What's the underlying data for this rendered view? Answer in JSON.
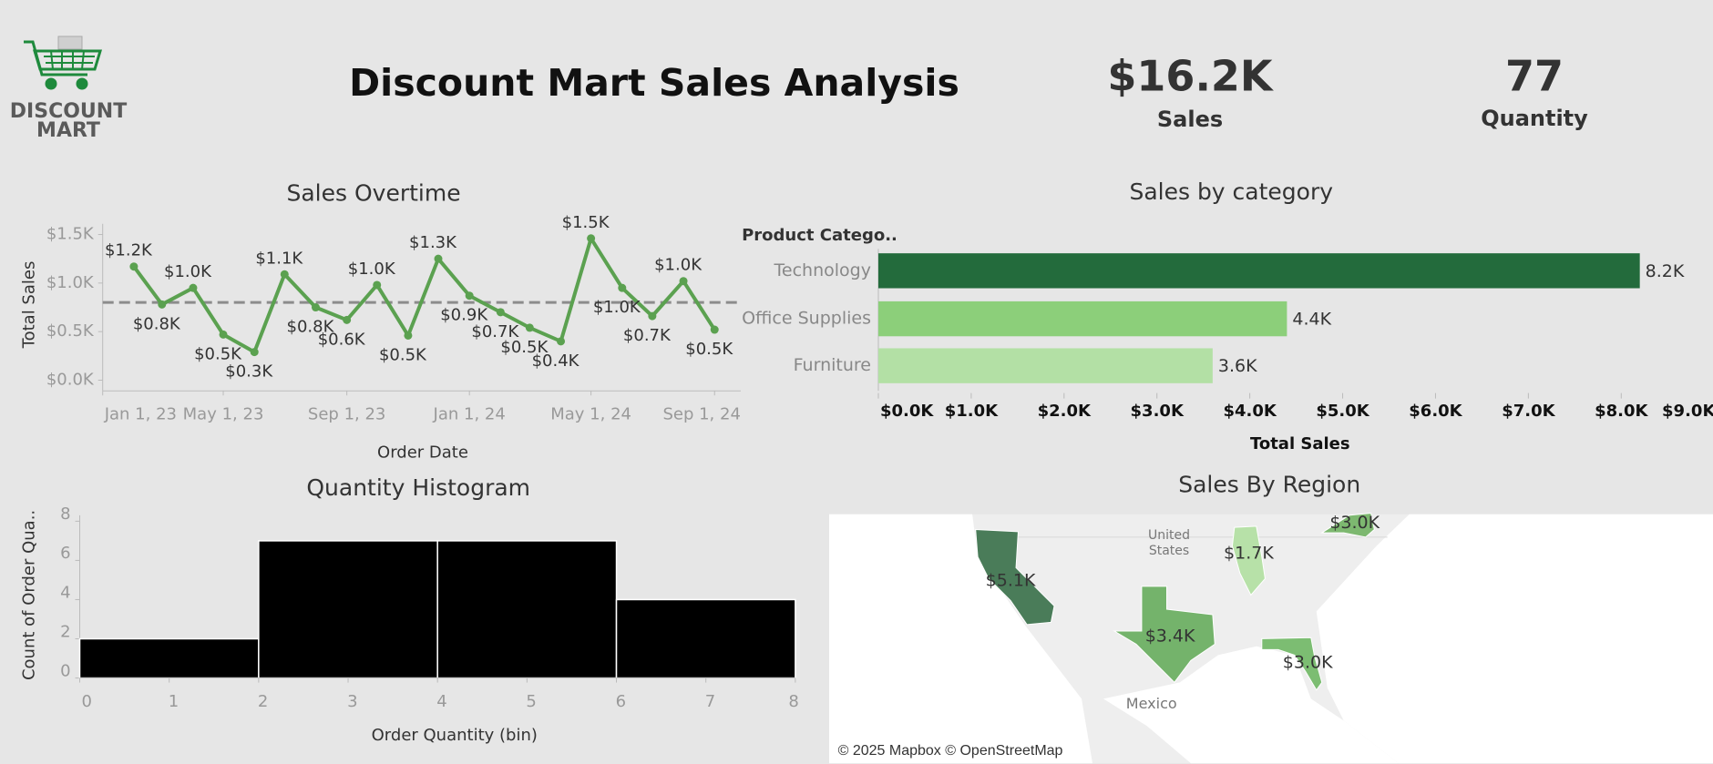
{
  "header": {
    "logo_lines": [
      "DISCOUNT",
      "MART"
    ],
    "title": "Discount Mart Sales Analysis"
  },
  "kpis": [
    {
      "value": "$16.2K",
      "label": "Sales"
    },
    {
      "value": 77,
      "label": "Quantity"
    }
  ],
  "chart_data": [
    {
      "type": "line",
      "title": "Sales Overtime",
      "x_label": "Order Date",
      "y_label": "Total Sales",
      "x": [
        "2023-02-01",
        "2023-03-01",
        "2023-04-01",
        "2023-05-01",
        "2023-06-01",
        "2023-07-01",
        "2023-08-01",
        "2023-09-01",
        "2023-10-01",
        "2023-11-01",
        "2023-12-01",
        "2024-01-01",
        "2024-02-01",
        "2024-03-01",
        "2024-04-01",
        "2024-05-01",
        "2024-06-01",
        "2024-07-01",
        "2024-08-01",
        "2024-09-01"
      ],
      "values": [
        1170,
        780,
        950,
        470,
        290,
        1090,
        750,
        620,
        980,
        460,
        1250,
        870,
        700,
        540,
        400,
        1460,
        950,
        660,
        1020,
        520
      ],
      "value_labels": [
        "$1.2K",
        "$0.8K",
        "$1.0K",
        "$0.5K",
        "$0.3K",
        "$1.1K",
        "$0.8K",
        "$0.6K",
        "$1.0K",
        "$0.5K",
        "$1.3K",
        "$0.9K",
        "$0.7K",
        "$0.5K",
        "$0.4K",
        "$1.5K",
        "$1.0K",
        "$0.7K",
        "$1.0K",
        "$0.5K"
      ],
      "color": "#5ba150",
      "reference_line": 800,
      "reference_color": "#8c8c8c",
      "xlim": [
        "2023-01-01",
        "2024-09-27"
      ],
      "xticks": [
        {
          "value": "2023-01-01",
          "label": "Jan 1, 23"
        },
        {
          "value": "2023-05-01",
          "label": "May 1, 23"
        },
        {
          "value": "2023-09-01",
          "label": "Sep 1, 23"
        },
        {
          "value": "2024-01-01",
          "label": "Jan 1, 24"
        },
        {
          "value": "2024-05-01",
          "label": "May 1, 24"
        },
        {
          "value": "2024-09-01",
          "label": "Sep 1, 24"
        }
      ],
      "ylim": [
        -110,
        1610
      ],
      "yticks": [
        {
          "value": 0,
          "label": "$0.0K"
        },
        {
          "value": 500,
          "label": "$0.5K"
        },
        {
          "value": 1000,
          "label": "$1.0K"
        },
        {
          "value": 1500,
          "label": "$1.5K"
        }
      ]
    },
    {
      "type": "hbar",
      "title": "Sales by category",
      "row_header": "Product Catego..",
      "x_label": "Total Sales",
      "categories": [
        "Technology",
        "Office Supplies",
        "Furniture"
      ],
      "values": [
        8200,
        4400,
        3600
      ],
      "value_labels": [
        "8.2K",
        "4.4K",
        "3.6K"
      ],
      "colors": [
        "#236b3c",
        "#8ccf7a",
        "#b3e0a5"
      ],
      "xlim": [
        0,
        9000
      ],
      "xticks": [
        {
          "value": 0,
          "label": "$0.0K"
        },
        {
          "value": 1000,
          "label": "$1.0K"
        },
        {
          "value": 2000,
          "label": "$2.0K"
        },
        {
          "value": 3000,
          "label": "$3.0K"
        },
        {
          "value": 4000,
          "label": "$4.0K"
        },
        {
          "value": 5000,
          "label": "$5.0K"
        },
        {
          "value": 6000,
          "label": "$6.0K"
        },
        {
          "value": 7000,
          "label": "$7.0K"
        },
        {
          "value": 8000,
          "label": "$8.0K"
        },
        {
          "value": 9000,
          "label": "$9.0K"
        }
      ]
    },
    {
      "type": "histogram",
      "title": "Quantity Histogram",
      "x_label": "Order Quantity (bin)",
      "y_label": "Count of Order Qua..",
      "bins": [
        0,
        2,
        4,
        6,
        8
      ],
      "values": [
        2,
        7,
        7,
        4
      ],
      "color": "#000000",
      "xlim": [
        0,
        8
      ],
      "xticks": [
        0,
        1,
        2,
        3,
        4,
        5,
        6,
        7,
        8
      ],
      "ylim": [
        0,
        8.3
      ],
      "yticks": [
        0,
        2,
        4,
        6,
        8
      ]
    },
    {
      "type": "map",
      "title": "Sales By Region",
      "values": [
        5100,
        3400,
        3000,
        1700,
        3000
      ],
      "value_labels": [
        "$5.1K",
        "$3.4K",
        "$3.0K",
        "$1.7K",
        "$3.0K"
      ],
      "colors": [
        "#4a7c59",
        "#74b36b",
        "#7cbd72",
        "#b7e1a8",
        "#7db870"
      ],
      "place_labels": [
        "United States",
        "Mexico"
      ],
      "attribution": "© 2025 Mapbox © OpenStreetMap"
    }
  ]
}
